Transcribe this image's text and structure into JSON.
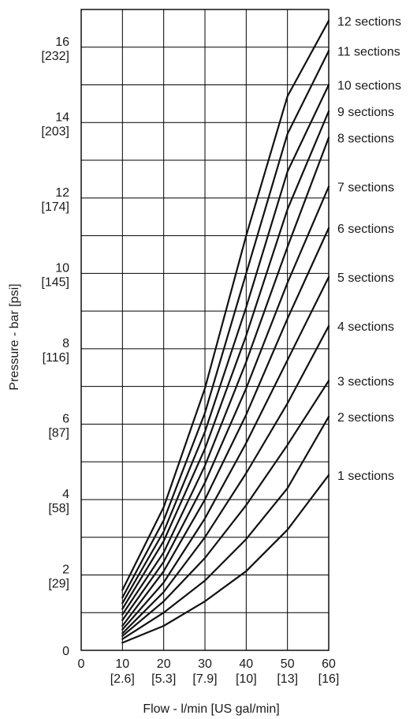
{
  "chart_data": {
    "type": "line",
    "title": "",
    "xlabel": "Flow - l/min [US gal/min]",
    "ylabel": "Pressure - bar [psi]",
    "xlim": [
      0,
      60
    ],
    "ylim": [
      0,
      17
    ],
    "grid": true,
    "x_ticks": [
      {
        "value": 0,
        "label": "0",
        "sub": ""
      },
      {
        "value": 10,
        "label": "10",
        "sub": "[2.6]"
      },
      {
        "value": 20,
        "label": "20",
        "sub": "[5.3]"
      },
      {
        "value": 30,
        "label": "30",
        "sub": "[7.9]"
      },
      {
        "value": 40,
        "label": "40",
        "sub": "[10]"
      },
      {
        "value": 50,
        "label": "50",
        "sub": "[13]"
      },
      {
        "value": 60,
        "label": "60",
        "sub": "[16]"
      }
    ],
    "y_ticks": [
      {
        "value": 0,
        "label": "0",
        "sub": ""
      },
      {
        "value": 2,
        "label": "2",
        "sub": "[29]"
      },
      {
        "value": 4,
        "label": "4",
        "sub": "[58]"
      },
      {
        "value": 6,
        "label": "6",
        "sub": "[87]"
      },
      {
        "value": 8,
        "label": "8",
        "sub": "[116]"
      },
      {
        "value": 10,
        "label": "10",
        "sub": "[145]"
      },
      {
        "value": 12,
        "label": "12",
        "sub": "[174]"
      },
      {
        "value": 14,
        "label": "14",
        "sub": "[203]"
      },
      {
        "value": 16,
        "label": "16",
        "sub": "[232]"
      }
    ],
    "x": [
      10,
      20,
      30,
      40,
      50,
      60
    ],
    "series": [
      {
        "name": "1 sections",
        "values": [
          0.2,
          0.65,
          1.3,
          2.1,
          3.2,
          4.65
        ]
      },
      {
        "name": "2 sections",
        "values": [
          0.3,
          1.0,
          1.85,
          2.95,
          4.3,
          6.2
        ]
      },
      {
        "name": "3 sections",
        "values": [
          0.38,
          1.3,
          2.45,
          3.85,
          5.45,
          7.15
        ]
      },
      {
        "name": "4 sections",
        "values": [
          0.45,
          1.55,
          3.0,
          4.7,
          6.55,
          8.6
        ]
      },
      {
        "name": "5 sections",
        "values": [
          0.55,
          1.8,
          3.5,
          5.5,
          7.7,
          9.9
        ]
      },
      {
        "name": "6 sections",
        "values": [
          0.65,
          2.1,
          4.0,
          6.25,
          8.8,
          11.2
        ]
      },
      {
        "name": "7 sections",
        "values": [
          0.8,
          2.35,
          4.45,
          6.95,
          9.75,
          12.3
        ]
      },
      {
        "name": "8 sections",
        "values": [
          0.95,
          2.6,
          4.9,
          7.65,
          10.7,
          13.6
        ]
      },
      {
        "name": "9 sections",
        "values": [
          1.1,
          2.9,
          5.35,
          8.35,
          11.7,
          14.3
        ]
      },
      {
        "name": "10 sections",
        "values": [
          1.25,
          3.15,
          5.8,
          9.1,
          12.7,
          15.0
        ]
      },
      {
        "name": "11 sections",
        "values": [
          1.4,
          3.45,
          6.3,
          10.0,
          13.7,
          15.9
        ]
      },
      {
        "name": "12 sections",
        "values": [
          1.6,
          3.8,
          6.95,
          11.0,
          14.7,
          16.7
        ]
      }
    ]
  }
}
